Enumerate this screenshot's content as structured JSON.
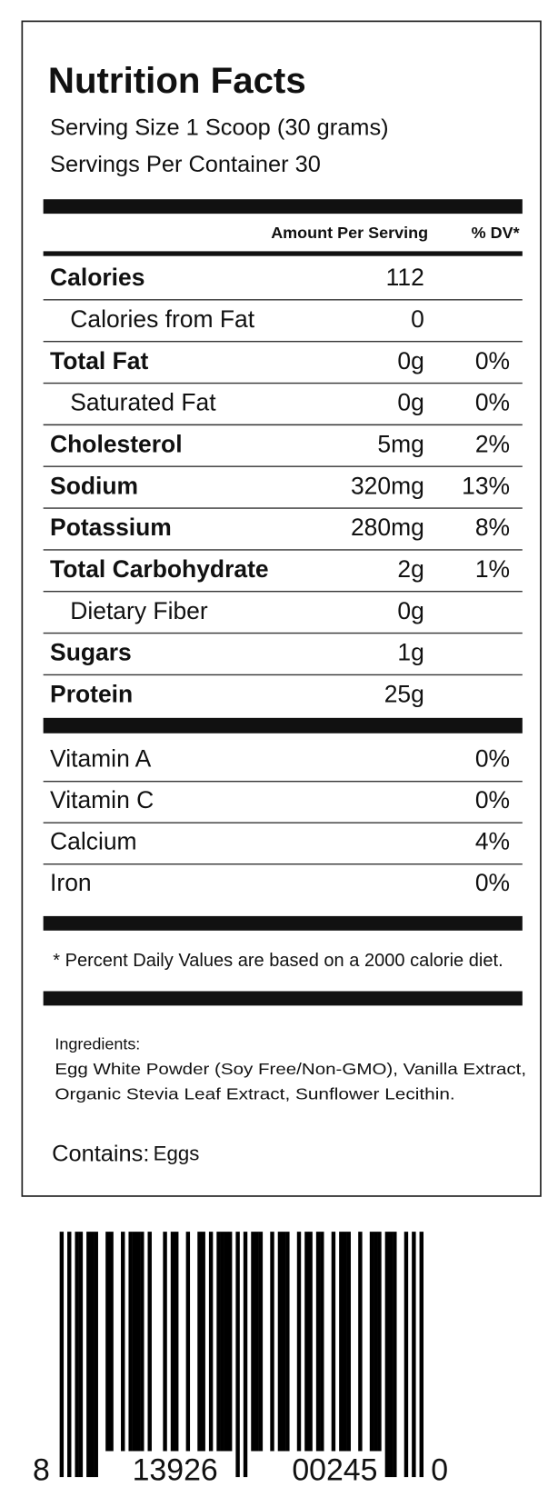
{
  "header": {
    "title": "Nutrition Facts",
    "serving_size": "Serving Size 1 Scoop (30 grams)",
    "servings_per_container": "Servings Per Container 30"
  },
  "columns": {
    "amount": "Amount Per Serving",
    "dv": "% DV*"
  },
  "rows": [
    {
      "label": "Calories",
      "amount": "112",
      "bold": true
    },
    {
      "label": "Calories from Fat",
      "amount": "0",
      "indent": true
    },
    {
      "label": "Total Fat",
      "amount": "0g",
      "dv": "0%",
      "bold": true
    },
    {
      "label": "Saturated Fat",
      "amount": "0g",
      "dv": "0%",
      "indent": true
    },
    {
      "label": "Cholesterol",
      "amount": "5mg",
      "dv": "2%",
      "bold": true
    },
    {
      "label": "Sodium",
      "amount": "320mg",
      "dv": "13%",
      "bold": true
    },
    {
      "label": "Potassium",
      "amount": "280mg",
      "dv": "8%",
      "bold": true
    },
    {
      "label": "Total Carbohydrate",
      "amount": "2g",
      "dv": "1%",
      "bold": true
    },
    {
      "label": "Dietary Fiber",
      "amount": "0g",
      "indent": true
    },
    {
      "label": "Sugars",
      "amount": "1g",
      "bold": true
    },
    {
      "label": "Protein",
      "amount": "25g",
      "bold": true
    }
  ],
  "vitamins": [
    {
      "label": "Vitamin A",
      "dv": "0%"
    },
    {
      "label": "Vitamin C",
      "dv": "0%"
    },
    {
      "label": "Calcium",
      "dv": "4%"
    },
    {
      "label": "Iron",
      "dv": "0%"
    }
  ],
  "footnote": "* Percent Daily Values are based on a 2000 calorie diet.",
  "ingredients": {
    "label": "Ingredients:",
    "lines": [
      "Egg White Powder (Soy Free/Non-GMO), Vanilla Extract,",
      "Organic Stevia Leaf Extract, Sunflower Lecithin."
    ]
  },
  "contains": {
    "label": "Contains:",
    "value": "Eggs"
  },
  "barcode": {
    "digits": [
      "8",
      "13926",
      "00245",
      "0"
    ]
  }
}
